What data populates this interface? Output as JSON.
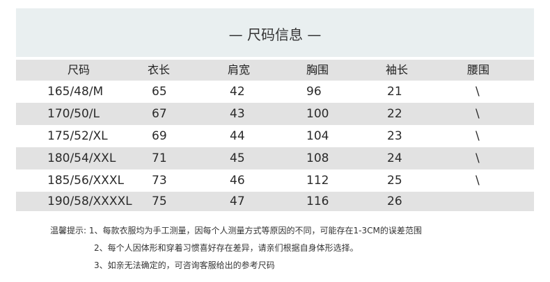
{
  "title": "— 尺码信息 —",
  "headers": [
    "尺码",
    "衣长",
    "肩宽",
    "胸围",
    "袖长",
    "腰围"
  ],
  "rows": [
    [
      "165/48/M",
      "65",
      "42",
      "96",
      "21",
      "\\"
    ],
    [
      "170/50/L",
      "67",
      "43",
      "100",
      "22",
      "\\"
    ],
    [
      "175/52/XL",
      "69",
      "44",
      "104",
      "23",
      "\\"
    ],
    [
      "180/54/XXL",
      "71",
      "45",
      "108",
      "24",
      "\\"
    ],
    [
      "185/56/XXXL",
      "73",
      "46",
      "112",
      "25",
      "\\"
    ],
    [
      "190/58/XXXXL",
      "75",
      "47",
      "116",
      "26",
      ""
    ]
  ],
  "notes": {
    "label": "温馨提示:",
    "items": [
      "1、每款衣服均为手工测量，因每个人测量方式等原因的不同，可能存在1-3CM的误差范围",
      "2、每个人因体形和穿着习惯喜好存在差异，请亲们根据自身体形选择。",
      "3、如亲无法确定的，可咨询客服给出的参考尺码"
    ]
  }
}
